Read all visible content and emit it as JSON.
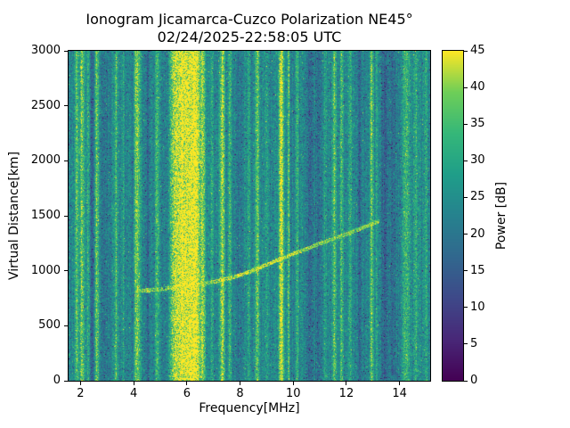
{
  "figure": {
    "background": "#ffffff",
    "text_color": "#000000"
  },
  "chart_data": {
    "type": "heatmap",
    "title": "Ionogram Jicamarca-Cuzco Polarization NE45°",
    "subtitle": "02/24/2025-22:58:05 UTC",
    "xlabel": "Frequency[MHz]",
    "ylabel": "Virtual Distance[km]",
    "xlim": [
      1.55,
      15.15
    ],
    "ylim": [
      0,
      3000
    ],
    "xticks": [
      2,
      4,
      6,
      8,
      10,
      12,
      14
    ],
    "yticks": [
      0,
      500,
      1000,
      1500,
      2000,
      2500,
      3000
    ],
    "grid": false,
    "colorbar": {
      "label": "Power [dB]",
      "min": 0,
      "max": 45,
      "ticks": [
        0,
        5,
        10,
        15,
        20,
        25,
        30,
        35,
        40,
        45
      ]
    },
    "colormap": {
      "name": "viridis",
      "stops": [
        {
          "pos": 0.0,
          "color": "#440154"
        },
        {
          "pos": 0.125,
          "color": "#482878"
        },
        {
          "pos": 0.25,
          "color": "#3e4989"
        },
        {
          "pos": 0.375,
          "color": "#31688e"
        },
        {
          "pos": 0.5,
          "color": "#26828e"
        },
        {
          "pos": 0.625,
          "color": "#1f9e89"
        },
        {
          "pos": 0.75,
          "color": "#35b779"
        },
        {
          "pos": 0.875,
          "color": "#6ece58"
        },
        {
          "pos": 1.0,
          "color": "#fde725"
        }
      ]
    },
    "background_noise_db": {
      "min": 17,
      "max": 30
    },
    "rfi_bands": [
      {
        "f": 1.85,
        "w": 0.05,
        "db": 13
      },
      {
        "f": 2.05,
        "w": 0.06,
        "db": 15
      },
      {
        "f": 2.3,
        "w": 0.035,
        "db": 9
      },
      {
        "f": 2.44,
        "w": 0.05,
        "db": -7
      },
      {
        "f": 2.62,
        "w": 0.06,
        "db": 13
      },
      {
        "f": 2.88,
        "w": 0.09,
        "db": -5
      },
      {
        "f": 3.33,
        "w": 0.05,
        "db": 11
      },
      {
        "f": 3.62,
        "w": 0.03,
        "db": 6
      },
      {
        "f": 3.95,
        "w": 0.05,
        "db": -4
      },
      {
        "f": 4.13,
        "w": 0.09,
        "db": 15
      },
      {
        "f": 4.55,
        "w": 0.07,
        "db": -5
      },
      {
        "f": 4.88,
        "w": 0.05,
        "db": 11
      },
      {
        "f": 5.15,
        "w": 0.05,
        "db": -3
      },
      {
        "f": 5.5,
        "w": 0.1,
        "db": 16
      },
      {
        "f": 5.75,
        "w": 0.12,
        "db": 19
      },
      {
        "f": 6.05,
        "w": 0.18,
        "db": 22
      },
      {
        "f": 6.35,
        "w": 0.12,
        "db": 19
      },
      {
        "f": 6.6,
        "w": 0.07,
        "db": 13
      },
      {
        "f": 6.95,
        "w": 0.04,
        "db": 8
      },
      {
        "f": 7.33,
        "w": 0.06,
        "db": 19
      },
      {
        "f": 7.62,
        "w": 0.04,
        "db": 11
      },
      {
        "f": 7.95,
        "w": 0.05,
        "db": -4
      },
      {
        "f": 8.33,
        "w": 0.03,
        "db": 7
      },
      {
        "f": 8.65,
        "w": 0.06,
        "db": 12
      },
      {
        "f": 9.0,
        "w": 0.03,
        "db": 6
      },
      {
        "f": 9.55,
        "w": 0.07,
        "db": 21
      },
      {
        "f": 9.82,
        "w": 0.035,
        "db": 13
      },
      {
        "f": 10.15,
        "w": 0.035,
        "db": 9
      },
      {
        "f": 10.6,
        "w": 0.12,
        "db": -5
      },
      {
        "f": 10.95,
        "w": 0.09,
        "db": -4
      },
      {
        "f": 11.2,
        "w": 0.03,
        "db": 6
      },
      {
        "f": 11.55,
        "w": 0.05,
        "db": 13
      },
      {
        "f": 11.82,
        "w": 0.045,
        "db": 12
      },
      {
        "f": 12.15,
        "w": 0.045,
        "db": 9
      },
      {
        "f": 12.5,
        "w": 0.07,
        "db": -5
      },
      {
        "f": 12.95,
        "w": 0.05,
        "db": 13
      },
      {
        "f": 13.15,
        "w": 0.03,
        "db": 7
      },
      {
        "f": 13.45,
        "w": 0.1,
        "db": -6
      },
      {
        "f": 13.78,
        "w": 0.09,
        "db": -5
      },
      {
        "f": 14.25,
        "w": 0.11,
        "db": 11
      },
      {
        "f": 14.6,
        "w": 0.06,
        "db": 8
      },
      {
        "f": 15.0,
        "w": 0.06,
        "db": 8
      }
    ],
    "echo_trace": {
      "points": [
        [
          4.1,
          815
        ],
        [
          5.0,
          832
        ],
        [
          6.0,
          862
        ],
        [
          6.8,
          888
        ],
        [
          7.3,
          915
        ],
        [
          7.8,
          945
        ],
        [
          8.3,
          985
        ],
        [
          8.8,
          1035
        ],
        [
          9.3,
          1085
        ],
        [
          9.8,
          1135
        ],
        [
          10.3,
          1180
        ],
        [
          10.8,
          1228
        ],
        [
          11.3,
          1272
        ],
        [
          11.8,
          1315
        ],
        [
          12.3,
          1360
        ],
        [
          12.8,
          1408
        ],
        [
          13.25,
          1455
        ]
      ],
      "peak_db": 42,
      "half_width_km": 18
    }
  }
}
